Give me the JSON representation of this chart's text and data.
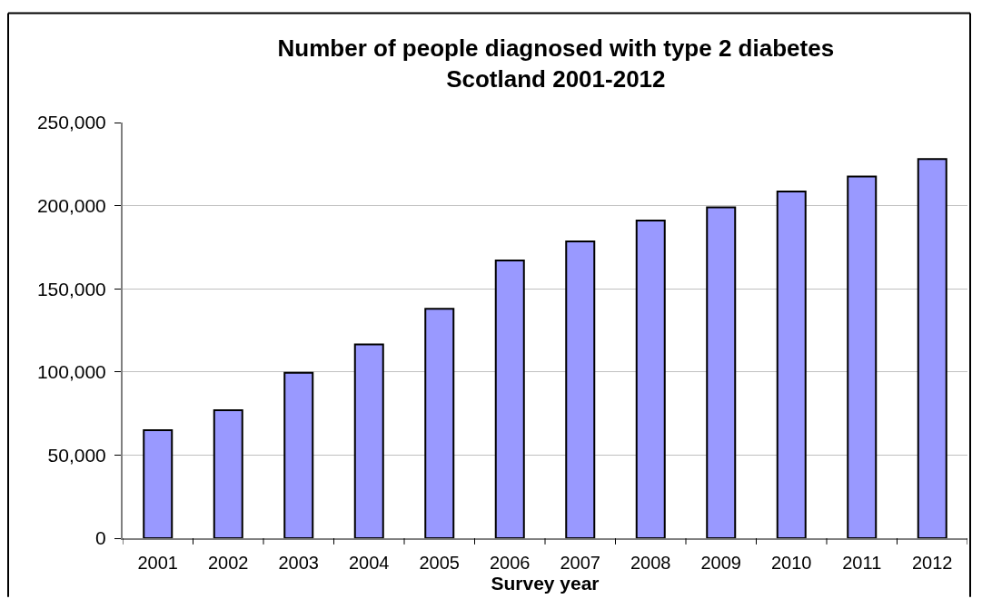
{
  "chart_data": {
    "type": "bar",
    "title": "Number of people diagnosed with type 2 diabetes\nScotland 2001-2012",
    "xlabel": "Survey year",
    "categories": [
      "2001",
      "2002",
      "2003",
      "2004",
      "2005",
      "2006",
      "2007",
      "2008",
      "2009",
      "2010",
      "2011",
      "2012"
    ],
    "values": [
      65000,
      77000,
      99500,
      116500,
      138000,
      167000,
      178500,
      191000,
      199000,
      208500,
      217500,
      228000
    ],
    "color": "#9999ff",
    "ylim": [
      0,
      250000
    ],
    "yticks": [
      0,
      {
        "value": 50000,
        "label": "50,000"
      },
      {
        "value": 100000,
        "label": "100,000"
      },
      {
        "value": 150000,
        "label": "150,000"
      },
      {
        "value": 200000,
        "label": "200,000"
      },
      {
        "value": 250000,
        "label": "250,000"
      }
    ],
    "grid": "y"
  }
}
